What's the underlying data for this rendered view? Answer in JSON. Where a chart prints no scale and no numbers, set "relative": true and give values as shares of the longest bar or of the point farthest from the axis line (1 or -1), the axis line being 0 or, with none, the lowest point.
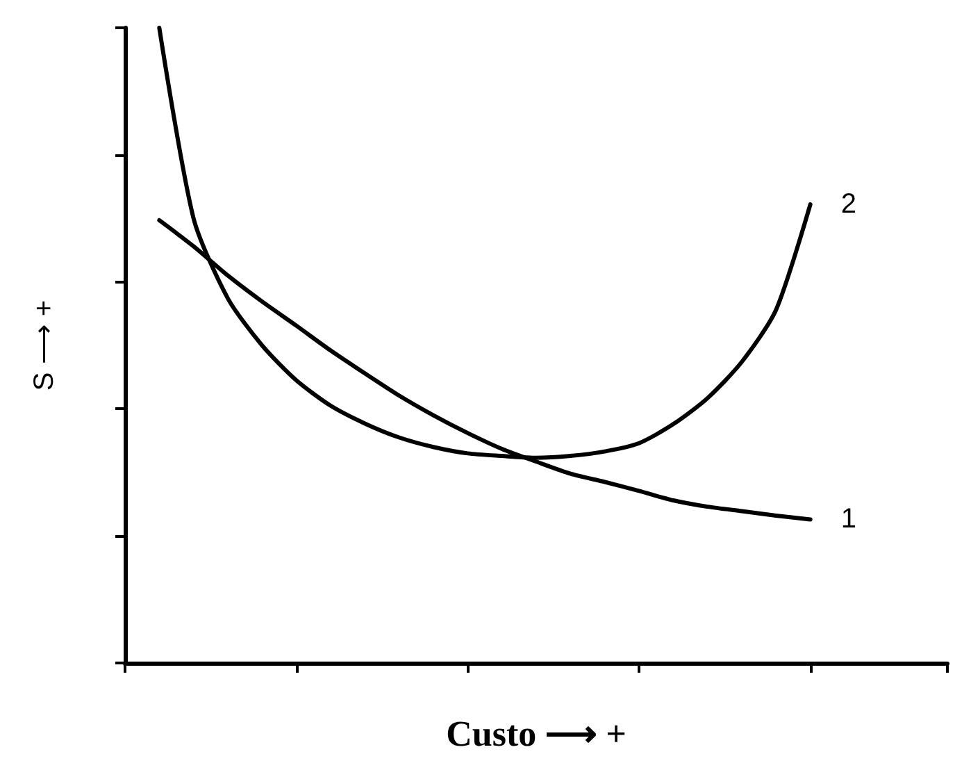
{
  "chart_data": {
    "type": "line",
    "relative": true,
    "xlabel": "Custo ⟶ +",
    "ylabel": "S ⟶ +",
    "legend": false,
    "grid": false,
    "marker": "none",
    "line_style": "solid",
    "categories": [
      null,
      null,
      null,
      null,
      null,
      null,
      null,
      null,
      null,
      null,
      null,
      null,
      null,
      null,
      null,
      null,
      null,
      null,
      null,
      null,
      null,
      null,
      null,
      null,
      null
    ],
    "series": [
      {
        "name": "1",
        "color": "#000000",
        "values": [
          null,
          0.697,
          0.656,
          0.61,
          0.569,
          0.531,
          0.492,
          0.456,
          0.421,
          0.39,
          0.362,
          0.337,
          0.317,
          0.298,
          0.285,
          0.271,
          0.256,
          0.246,
          0.239,
          0.232,
          0.226,
          null,
          null,
          null,
          null
        ]
      },
      {
        "name": "2",
        "color": "#000000",
        "values": [
          null,
          1.0,
          0.7,
          0.574,
          0.5,
          0.445,
          0.405,
          0.377,
          0.355,
          0.34,
          0.33,
          0.326,
          0.323,
          0.326,
          0.333,
          0.346,
          0.376,
          0.417,
          0.474,
          0.556,
          0.722,
          null,
          null,
          null,
          null
        ]
      }
    ]
  }
}
